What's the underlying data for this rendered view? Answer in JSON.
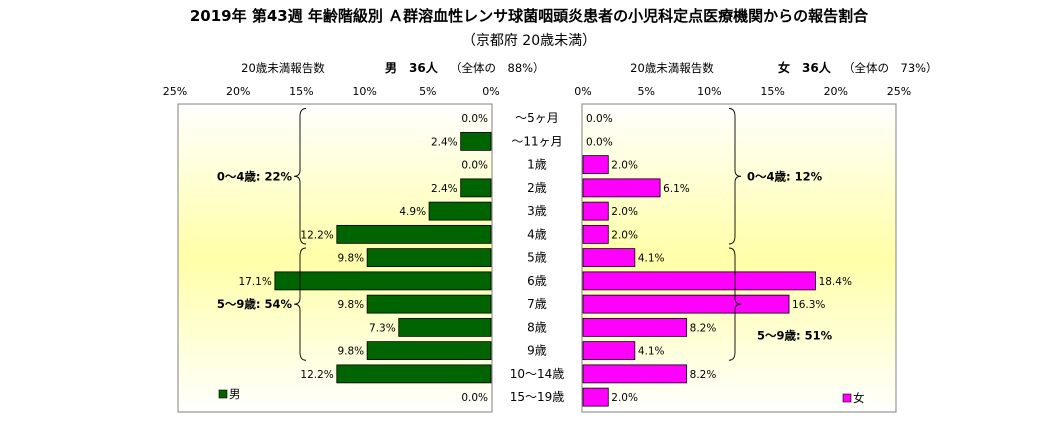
{
  "title": "2019年 第43週 年齢階級別 Ａ群溶血性レンサ球菌咽頭炎患者の小児科定点医療機関からの報告割合",
  "subtitle": "（京都府 20歳未満）",
  "colors": {
    "male_bar": "#006400",
    "female_bar": "#ff00ff",
    "panel_gradient_edge": "#ffffff",
    "panel_gradient_center": "#ffffa8"
  },
  "chart_data": {
    "type": "bar",
    "orientation": "horizontal",
    "layout": "population-pyramid",
    "categories": [
      "～5ヶ月",
      "～11ヶ月",
      "1歳",
      "2歳",
      "3歳",
      "4歳",
      "5歳",
      "6歳",
      "7歳",
      "8歳",
      "9歳",
      "10～14歳",
      "15～19歳"
    ],
    "xlim": [
      0,
      25
    ],
    "ticks": [
      "0%",
      "5%",
      "10%",
      "15%",
      "20%",
      "25%"
    ],
    "series": [
      {
        "name": "男",
        "side": "left",
        "header_label": "20歳未満報告数",
        "header_count": "男　36人",
        "header_share": "（全体の　88%）",
        "values": [
          0.0,
          2.4,
          0.0,
          2.4,
          4.9,
          12.2,
          9.8,
          17.1,
          9.8,
          7.3,
          9.8,
          12.2,
          0.0
        ],
        "labels": [
          "0.0%",
          "2.4%",
          "0.0%",
          "2.4%",
          "4.9%",
          "12.2%",
          "9.8%",
          "17.1%",
          "9.8%",
          "7.3%",
          "9.8%",
          "12.2%",
          "0.0%"
        ],
        "groups": [
          {
            "label": "0～4歳: 22%",
            "from": 0,
            "to": 5
          },
          {
            "label": "5～9歳: 54%",
            "from": 6,
            "to": 10
          }
        ]
      },
      {
        "name": "女",
        "side": "right",
        "header_label": "20歳未満報告数",
        "header_count": "女　36人",
        "header_share": "（全体の　73%）",
        "values": [
          0.0,
          0.0,
          2.0,
          6.1,
          2.0,
          2.0,
          4.1,
          18.4,
          16.3,
          8.2,
          4.1,
          8.2,
          2.0
        ],
        "labels": [
          "0.0%",
          "0.0%",
          "2.0%",
          "6.1%",
          "2.0%",
          "2.0%",
          "4.1%",
          "18.4%",
          "16.3%",
          "8.2%",
          "4.1%",
          "8.2%",
          "2.0%"
        ],
        "groups": [
          {
            "label": "0～4歳: 12%",
            "from": 0,
            "to": 5
          },
          {
            "label": "5～9歳: 51%",
            "from": 6,
            "to": 10
          }
        ]
      }
    ]
  }
}
